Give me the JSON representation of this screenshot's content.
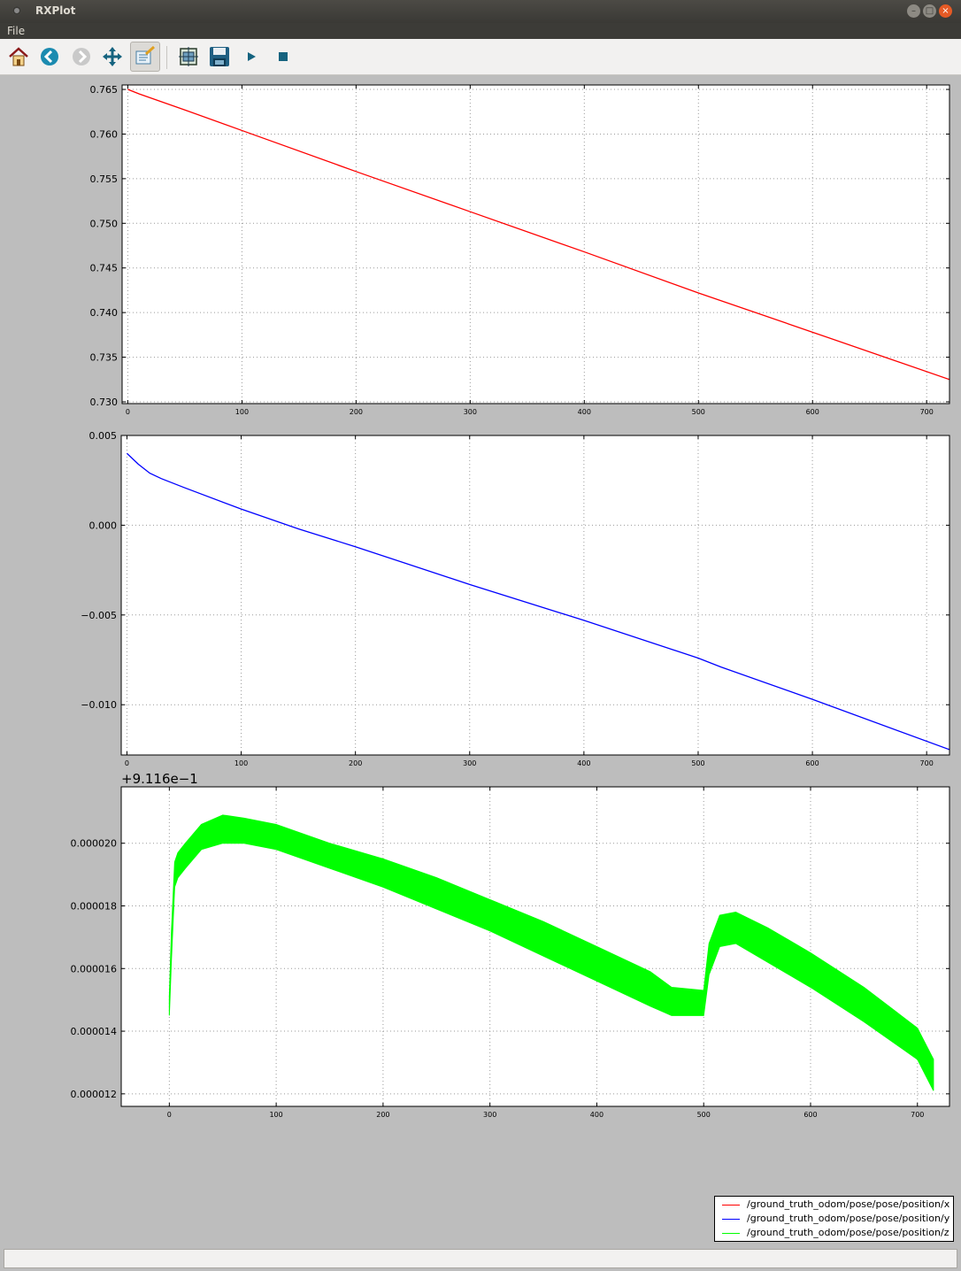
{
  "window": {
    "title": "RXPlot"
  },
  "menu": {
    "items": [
      "File"
    ]
  },
  "toolbar": {
    "buttons": [
      {
        "name": "home-button",
        "icon": "home-icon"
      },
      {
        "name": "back-button",
        "icon": "back-arrow-icon"
      },
      {
        "name": "forward-button",
        "icon": "forward-arrow-icon"
      },
      {
        "name": "pan-button",
        "icon": "move-arrows-icon"
      },
      {
        "name": "zoom-button",
        "icon": "zoom-rect-icon"
      },
      {
        "name": "configure-subplots-button",
        "icon": "subplots-icon"
      },
      {
        "name": "save-button",
        "icon": "floppy-disk-icon"
      },
      {
        "name": "play-button",
        "icon": "play-icon"
      },
      {
        "name": "stop-button",
        "icon": "stop-icon"
      }
    ]
  },
  "chart_data": [
    {
      "type": "line",
      "series": [
        {
          "name": "/ground_truth_odom/pose/pose/position/x",
          "color": "#ff0000",
          "x": [
            0,
            10,
            50,
            100,
            200,
            300,
            400,
            500,
            600,
            720
          ],
          "y": [
            0.765,
            0.7645,
            0.7627,
            0.7604,
            0.7558,
            0.7513,
            0.7468,
            0.7422,
            0.7378,
            0.7325
          ]
        }
      ],
      "xlim": [
        -5,
        720
      ],
      "ylim": [
        0.7298,
        0.7655
      ],
      "xticks": [
        0,
        100,
        200,
        300,
        400,
        500,
        600,
        700
      ],
      "xtick_labels": [
        "0",
        "100",
        "200",
        "300",
        "400",
        "500",
        "600",
        "700"
      ],
      "yticks": [
        0.73,
        0.735,
        0.74,
        0.745,
        0.75,
        0.755,
        0.76,
        0.765
      ],
      "ytick_labels": [
        "0.730",
        "0.735",
        "0.740",
        "0.745",
        "0.750",
        "0.755",
        "0.760",
        "0.765"
      ],
      "grid": true
    },
    {
      "type": "line",
      "series": [
        {
          "name": "/ground_truth_odom/pose/pose/position/y",
          "color": "#0000ff",
          "x": [
            0,
            10,
            20,
            30,
            50,
            100,
            150,
            200,
            300,
            400,
            500,
            520,
            600,
            720
          ],
          "y": [
            0.004,
            0.0034,
            0.0029,
            0.0026,
            0.0021,
            0.0009,
            -0.0002,
            -0.0012,
            -0.0033,
            -0.0053,
            -0.0074,
            -0.0079,
            -0.0097,
            -0.0125
          ]
        }
      ],
      "xlim": [
        -5,
        720
      ],
      "ylim": [
        -0.0128,
        0.005
      ],
      "xticks": [
        0,
        100,
        200,
        300,
        400,
        500,
        600,
        700
      ],
      "xtick_labels": [
        "0",
        "100",
        "200",
        "300",
        "400",
        "500",
        "600",
        "700"
      ],
      "yticks": [
        0.005,
        0.0,
        -0.005,
        -0.01
      ],
      "ytick_labels": [
        "0.005",
        "0.000",
        "−0.005",
        "−0.010"
      ],
      "grid": true
    },
    {
      "type": "area",
      "offset_label": "+9.116e−1",
      "series": [
        {
          "name": "/ground_truth_odom/pose/pose/position/z",
          "color": "#00ff00",
          "x": [
            0,
            2,
            5,
            8,
            15,
            30,
            50,
            70,
            100,
            150,
            200,
            250,
            300,
            350,
            400,
            450,
            470,
            500,
            505,
            515,
            530,
            560,
            600,
            650,
            700,
            715
          ],
          "y_low": [
            1.45e-05,
            1.63e-05,
            1.86e-05,
            1.89e-05,
            1.92e-05,
            1.98e-05,
            2e-05,
            2e-05,
            1.98e-05,
            1.92e-05,
            1.86e-05,
            1.79e-05,
            1.72e-05,
            1.64e-05,
            1.56e-05,
            1.48e-05,
            1.45e-05,
            1.45e-05,
            1.58e-05,
            1.67e-05,
            1.68e-05,
            1.62e-05,
            1.54e-05,
            1.43e-05,
            1.31e-05,
            1.21e-05
          ],
          "y_high": [
            1.51e-05,
            1.72e-05,
            1.94e-05,
            1.97e-05,
            2e-05,
            2.06e-05,
            2.09e-05,
            2.08e-05,
            2.06e-05,
            2e-05,
            1.95e-05,
            1.89e-05,
            1.82e-05,
            1.75e-05,
            1.67e-05,
            1.59e-05,
            1.54e-05,
            1.53e-05,
            1.68e-05,
            1.77e-05,
            1.78e-05,
            1.73e-05,
            1.65e-05,
            1.54e-05,
            1.41e-05,
            1.31e-05
          ]
        }
      ],
      "xlim": [
        -45,
        730
      ],
      "ylim": [
        1.16e-05,
        2.18e-05
      ],
      "xticks": [
        0,
        100,
        200,
        300,
        400,
        500,
        600,
        700
      ],
      "xtick_labels": [
        "0",
        "100",
        "200",
        "300",
        "400",
        "500",
        "600",
        "700"
      ],
      "yticks": [
        1.2e-05,
        1.4e-05,
        1.6e-05,
        1.8e-05,
        2e-05
      ],
      "ytick_labels": [
        "0.000012",
        "0.000014",
        "0.000016",
        "0.000018",
        "0.000020"
      ],
      "grid": true
    }
  ],
  "legend": {
    "position": "bottom-right",
    "entries": [
      {
        "label": "/ground_truth_odom/pose/pose/position/x",
        "color": "#ff0000"
      },
      {
        "label": "/ground_truth_odom/pose/pose/position/y",
        "color": "#0000ff"
      },
      {
        "label": "/ground_truth_odom/pose/pose/position/z",
        "color": "#00ff00"
      }
    ]
  },
  "statusbar": {
    "text": ""
  }
}
